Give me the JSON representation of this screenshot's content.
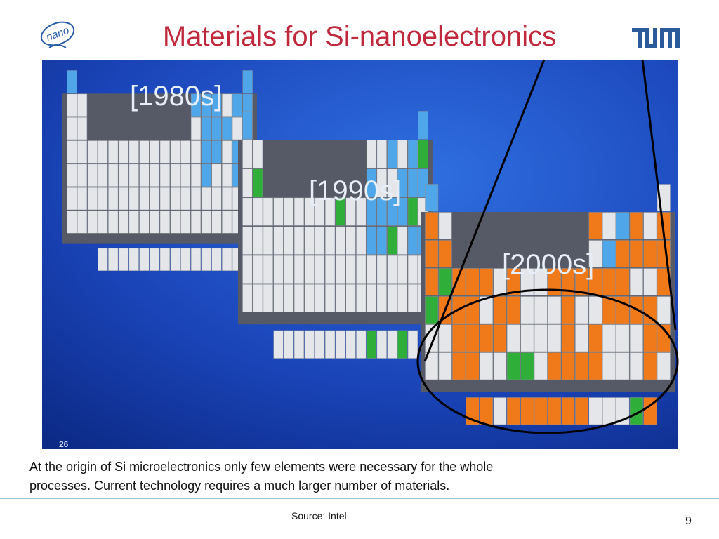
{
  "header": {
    "title": "Materials for Si-nanoelectronics",
    "logo_text": "nano"
  },
  "image": {
    "labels": [
      "[1980s]",
      "[1990s]",
      "[2000s]"
    ],
    "slide_number": "26"
  },
  "caption": [
    "At the origin of Si microelectronics only few elements were necessary for the whole",
    "processes. Current technology requires a much larger number of materials."
  ],
  "source": "Source: Intel",
  "page_number": "9"
}
